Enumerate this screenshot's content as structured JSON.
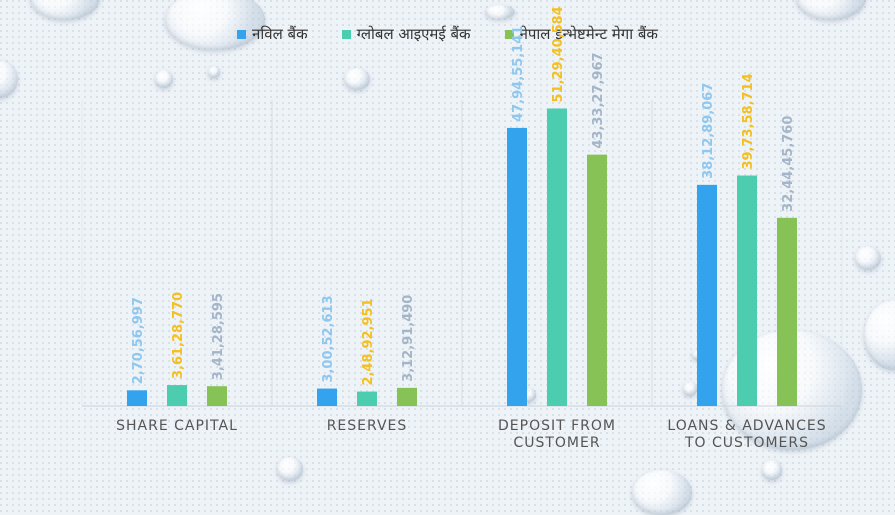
{
  "colors": {
    "series": [
      "#33a3ee",
      "#4dcdaf",
      "#86c255"
    ],
    "labels": [
      "#8fc7ee",
      "#f4c01f",
      "#a4b5c8"
    ]
  },
  "chart_data": {
    "type": "bar",
    "categories": [
      "SHARE CAPITAL",
      "RESERVES",
      "DEPOSIT FROM CUSTOMER",
      "LOANS & ADVANCES TO CUSTOMERS"
    ],
    "category_lines": [
      [
        "SHARE CAPITAL"
      ],
      [
        "RESERVES"
      ],
      [
        "DEPOSIT FROM",
        "CUSTOMER"
      ],
      [
        "LOANS & ADVANCES",
        "TO CUSTOMERS"
      ]
    ],
    "series": [
      {
        "name": "नविल बैंक",
        "values": [
          270.56997,
          300.52613,
          4794.55141,
          3812.89067
        ],
        "labels": [
          "2,70,56,997",
          "3,00,52,613",
          "47,94,55,141",
          "38,12,89,067"
        ]
      },
      {
        "name": "ग्लोबल आइएमई बैंक",
        "values": [
          361.2877,
          248.92951,
          5129.40584,
          3973.58714
        ],
        "labels": [
          "3,61,28,770",
          "2,48,92,951",
          "51,29,40,584",
          "39,73,58,714"
        ]
      },
      {
        "name": "नेपाल इन्भेष्टमेन्ट मेगा बैंक",
        "values": [
          341.28595,
          312.9149,
          4333.27967,
          3244.4576
        ],
        "labels": [
          "3,41,28,595",
          "3,12,91,490",
          "43,33,27,967",
          "32,44,45,760"
        ]
      }
    ],
    "ylim": [
      0,
      6000
    ],
    "grid": false,
    "legend": "top"
  }
}
